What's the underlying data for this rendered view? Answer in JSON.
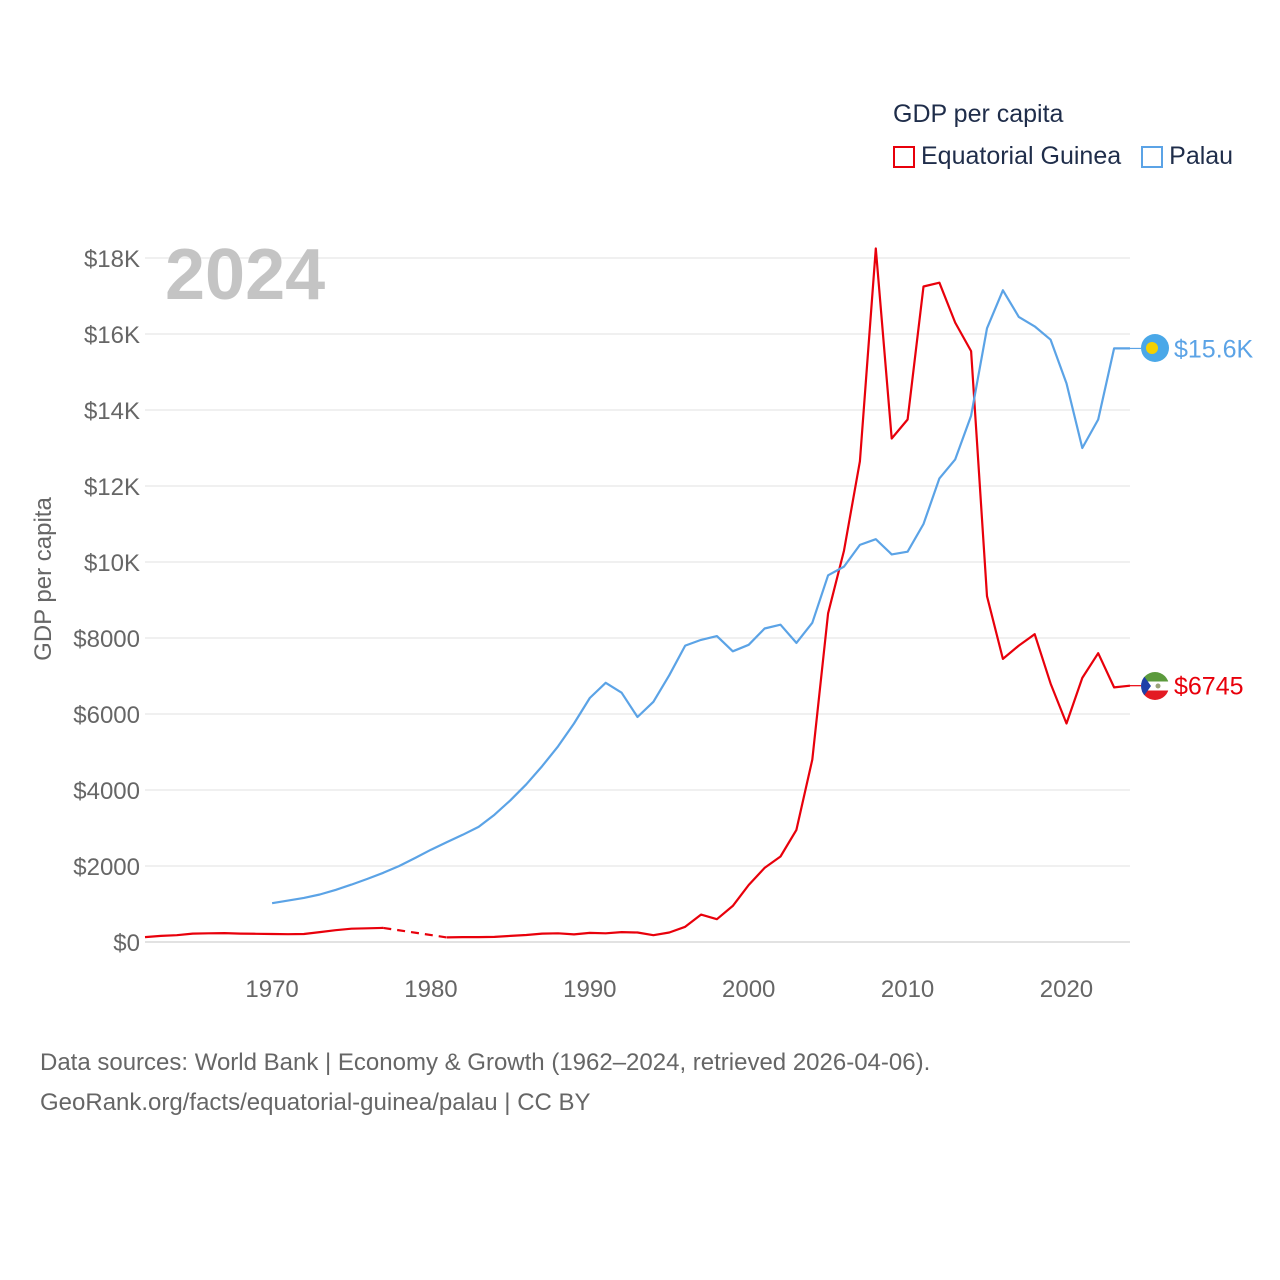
{
  "legend": {
    "title": "GDP per capita",
    "items": [
      {
        "label": "Equatorial Guinea",
        "color": "#e8000b"
      },
      {
        "label": "Palau",
        "color": "#5ba3e6"
      }
    ]
  },
  "source": {
    "line1": "Data sources: World Bank | Economy & Growth (1962–2024, retrieved 2026-04-06).",
    "line2": "GeoRank.org/facts/equatorial-guinea/palau | CC BY"
  },
  "chart_data": {
    "type": "line",
    "year_label": "2024",
    "ylabel": "GDP per capita",
    "xlim": [
      1962,
      2024
    ],
    "ylim": [
      0,
      18000
    ],
    "x_ticks": [
      1970,
      1980,
      1990,
      2000,
      2010,
      2020
    ],
    "x_tick_labels": [
      "1970",
      "1980",
      "1990",
      "2000",
      "2010",
      "2020"
    ],
    "y_ticks": [
      0,
      2000,
      4000,
      6000,
      8000,
      10000,
      12000,
      14000,
      16000,
      18000
    ],
    "y_tick_labels": [
      "$0",
      "$2000",
      "$4000",
      "$6000",
      "$8000",
      "$10K",
      "$12K",
      "$14K",
      "$16K",
      "$18K"
    ],
    "grid": true,
    "series": [
      {
        "name": "Equatorial Guinea",
        "color": "#e8000b",
        "end_label": "$6745",
        "gap": [
          1977,
          1981
        ],
        "points": [
          [
            1962,
            130
          ],
          [
            1963,
            160
          ],
          [
            1964,
            180
          ],
          [
            1965,
            220
          ],
          [
            1966,
            230
          ],
          [
            1967,
            235
          ],
          [
            1968,
            220
          ],
          [
            1969,
            215
          ],
          [
            1970,
            210
          ],
          [
            1971,
            205
          ],
          [
            1972,
            210
          ],
          [
            1973,
            260
          ],
          [
            1974,
            310
          ],
          [
            1975,
            350
          ],
          [
            1976,
            360
          ],
          [
            1977,
            370
          ],
          [
            1981,
            120
          ],
          [
            1982,
            130
          ],
          [
            1983,
            130
          ],
          [
            1984,
            135
          ],
          [
            1985,
            160
          ],
          [
            1986,
            185
          ],
          [
            1987,
            220
          ],
          [
            1988,
            230
          ],
          [
            1989,
            200
          ],
          [
            1990,
            240
          ],
          [
            1991,
            230
          ],
          [
            1992,
            260
          ],
          [
            1993,
            250
          ],
          [
            1994,
            180
          ],
          [
            1995,
            250
          ],
          [
            1996,
            400
          ],
          [
            1997,
            720
          ],
          [
            1998,
            600
          ],
          [
            1999,
            950
          ],
          [
            2000,
            1500
          ],
          [
            2001,
            1950
          ],
          [
            2002,
            2250
          ],
          [
            2003,
            2950
          ],
          [
            2004,
            4800
          ],
          [
            2005,
            8650
          ],
          [
            2006,
            10300
          ],
          [
            2007,
            12650
          ],
          [
            2008,
            18250
          ],
          [
            2009,
            13250
          ],
          [
            2010,
            13750
          ],
          [
            2011,
            17250
          ],
          [
            2012,
            17350
          ],
          [
            2013,
            16300
          ],
          [
            2014,
            15550
          ],
          [
            2015,
            9100
          ],
          [
            2016,
            7450
          ],
          [
            2017,
            7800
          ],
          [
            2018,
            8100
          ],
          [
            2019,
            6800
          ],
          [
            2020,
            5750
          ],
          [
            2021,
            6950
          ],
          [
            2022,
            7600
          ],
          [
            2023,
            6700
          ],
          [
            2024,
            6745
          ]
        ]
      },
      {
        "name": "Palau",
        "color": "#5ba3e6",
        "end_label": "$15.6K",
        "points": [
          [
            1970,
            1020
          ],
          [
            1971,
            1090
          ],
          [
            1972,
            1160
          ],
          [
            1973,
            1250
          ],
          [
            1974,
            1370
          ],
          [
            1975,
            1510
          ],
          [
            1976,
            1660
          ],
          [
            1977,
            1820
          ],
          [
            1978,
            2000
          ],
          [
            1979,
            2210
          ],
          [
            1980,
            2430
          ],
          [
            1981,
            2630
          ],
          [
            1982,
            2820
          ],
          [
            1983,
            3030
          ],
          [
            1984,
            3350
          ],
          [
            1985,
            3730
          ],
          [
            1986,
            4150
          ],
          [
            1987,
            4630
          ],
          [
            1988,
            5150
          ],
          [
            1989,
            5750
          ],
          [
            1990,
            6420
          ],
          [
            1991,
            6820
          ],
          [
            1992,
            6560
          ],
          [
            1993,
            5920
          ],
          [
            1994,
            6320
          ],
          [
            1995,
            7020
          ],
          [
            1996,
            7800
          ],
          [
            1997,
            7950
          ],
          [
            1998,
            8050
          ],
          [
            1999,
            7650
          ],
          [
            2000,
            7820
          ],
          [
            2001,
            8250
          ],
          [
            2002,
            8350
          ],
          [
            2003,
            7870
          ],
          [
            2004,
            8400
          ],
          [
            2005,
            9650
          ],
          [
            2006,
            9880
          ],
          [
            2007,
            10450
          ],
          [
            2008,
            10600
          ],
          [
            2009,
            10200
          ],
          [
            2010,
            10270
          ],
          [
            2011,
            11000
          ],
          [
            2012,
            12200
          ],
          [
            2013,
            12700
          ],
          [
            2014,
            13850
          ],
          [
            2015,
            16150
          ],
          [
            2016,
            17150
          ],
          [
            2017,
            16450
          ],
          [
            2018,
            16200
          ],
          [
            2019,
            15850
          ],
          [
            2020,
            14700
          ],
          [
            2021,
            13000
          ],
          [
            2022,
            13750
          ],
          [
            2023,
            15620
          ],
          [
            2024,
            15620
          ]
        ]
      }
    ]
  }
}
